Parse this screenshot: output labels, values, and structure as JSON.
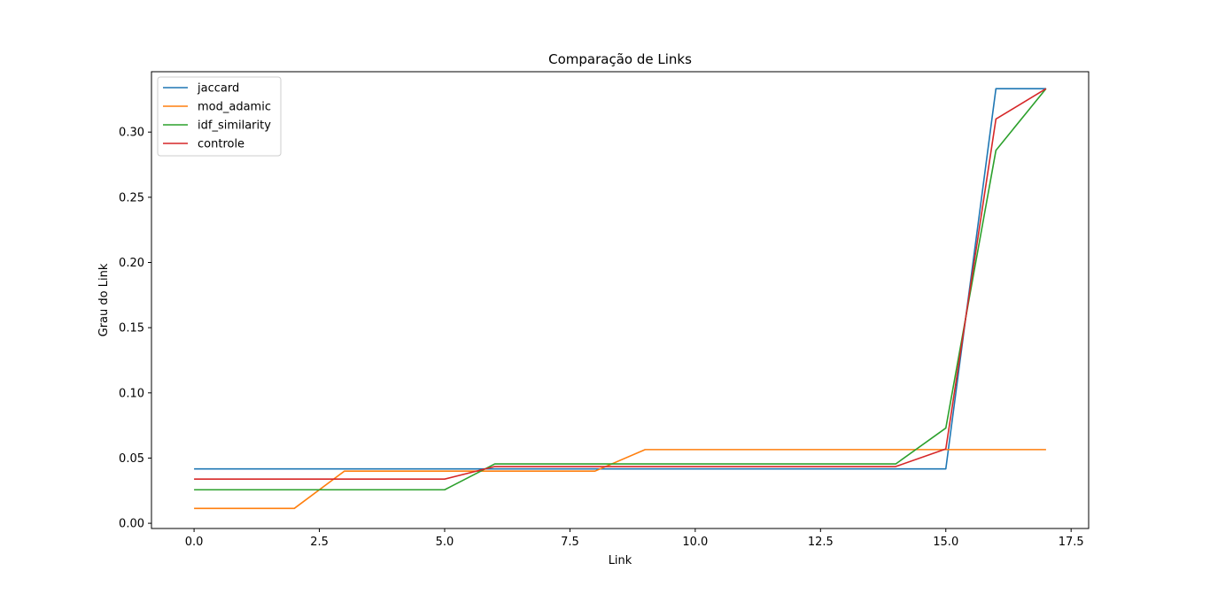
{
  "chart_data": {
    "type": "line",
    "title": "Comparação de Links",
    "xlabel": "Link",
    "ylabel": "Grau do Link",
    "xlim": [
      -0.85,
      17.85
    ],
    "ylim": [
      -0.004,
      0.3463
    ],
    "xticks": [
      0.0,
      2.5,
      5.0,
      7.5,
      10.0,
      12.5,
      15.0,
      17.5
    ],
    "xtick_labels": [
      "0.0",
      "2.5",
      "5.0",
      "7.5",
      "10.0",
      "12.5",
      "15.0",
      "17.5"
    ],
    "yticks": [
      0.0,
      0.05,
      0.1,
      0.15,
      0.2,
      0.25,
      0.3
    ],
    "ytick_labels": [
      "0.00",
      "0.05",
      "0.10",
      "0.15",
      "0.20",
      "0.25",
      "0.30"
    ],
    "grid": false,
    "legend_position": "upper-left",
    "x": [
      0,
      1,
      2,
      3,
      4,
      5,
      6,
      7,
      8,
      9,
      10,
      11,
      12,
      13,
      14,
      15,
      16,
      17
    ],
    "series": [
      {
        "name": "jaccard",
        "color": "#1f77b4",
        "values": [
          0.0417,
          0.0417,
          0.0417,
          0.0417,
          0.0417,
          0.0417,
          0.0417,
          0.0417,
          0.0417,
          0.0417,
          0.0417,
          0.0417,
          0.0417,
          0.0417,
          0.0417,
          0.0417,
          0.3333,
          0.3333
        ]
      },
      {
        "name": "mod_adamic",
        "color": "#ff7f0e",
        "values": [
          0.0114,
          0.0114,
          0.0114,
          0.04,
          0.04,
          0.04,
          0.04,
          0.04,
          0.04,
          0.0565,
          0.0565,
          0.0565,
          0.0565,
          0.0565,
          0.0565,
          0.0565,
          0.0565,
          0.0565
        ]
      },
      {
        "name": "idf_similarity",
        "color": "#2ca02c",
        "values": [
          0.0257,
          0.0257,
          0.0257,
          0.0257,
          0.0257,
          0.0257,
          0.0455,
          0.0455,
          0.0455,
          0.0455,
          0.0455,
          0.0455,
          0.0455,
          0.0455,
          0.0455,
          0.073,
          0.286,
          0.3333
        ]
      },
      {
        "name": "controle",
        "color": "#d62728",
        "values": [
          0.0339,
          0.0339,
          0.0339,
          0.0339,
          0.0339,
          0.0339,
          0.0435,
          0.0435,
          0.0435,
          0.0435,
          0.0435,
          0.0435,
          0.0435,
          0.0435,
          0.0435,
          0.057,
          0.31,
          0.3333
        ]
      }
    ]
  }
}
